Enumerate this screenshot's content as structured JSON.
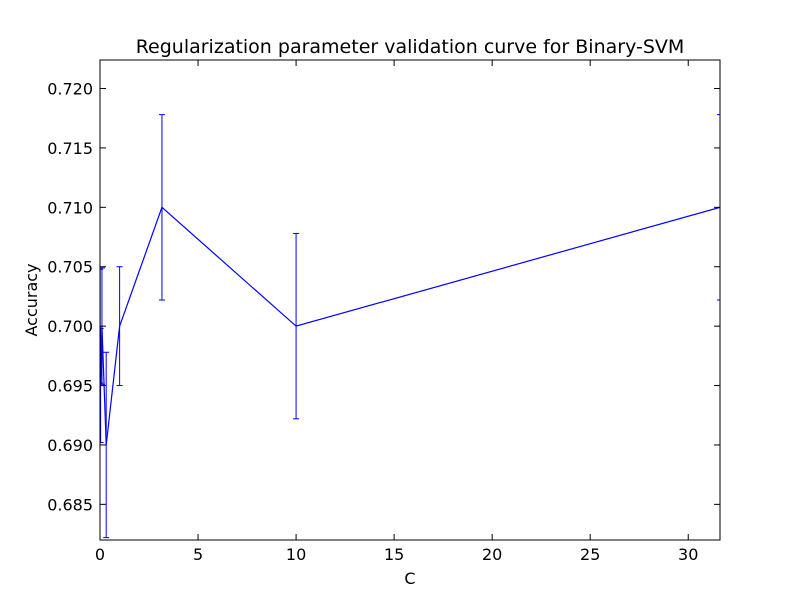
{
  "chart_data": {
    "type": "line",
    "title": "Regularization parameter validation curve for Binary-SVM",
    "xlabel": "C",
    "ylabel": "Accuracy",
    "xlim": [
      0,
      31.62
    ],
    "ylim": [
      0.682,
      0.7224
    ],
    "x_ticks": [
      0,
      5,
      10,
      15,
      20,
      25,
      30
    ],
    "x_tick_labels": [
      "0",
      "5",
      "10",
      "15",
      "20",
      "25",
      "30"
    ],
    "y_ticks": [
      0.685,
      0.69,
      0.695,
      0.7,
      0.705,
      0.71,
      0.715,
      0.72
    ],
    "y_tick_labels": [
      "0.685",
      "0.690",
      "0.695",
      "0.700",
      "0.705",
      "0.710",
      "0.715",
      "0.720"
    ],
    "grid": false,
    "series": [
      {
        "color": "#0000ff",
        "x": [
          0.01,
          0.0316,
          0.1,
          0.316,
          1.0,
          3.16,
          10.0,
          31.62
        ],
        "y": [
          0.7,
          0.695,
          0.7,
          0.69,
          0.7,
          0.71,
          0.7,
          0.71
        ],
        "yerr": [
          0.0048,
          0.0048,
          0.0049,
          0.0078,
          0.005,
          0.0078,
          0.0078,
          0.0078
        ]
      }
    ]
  }
}
